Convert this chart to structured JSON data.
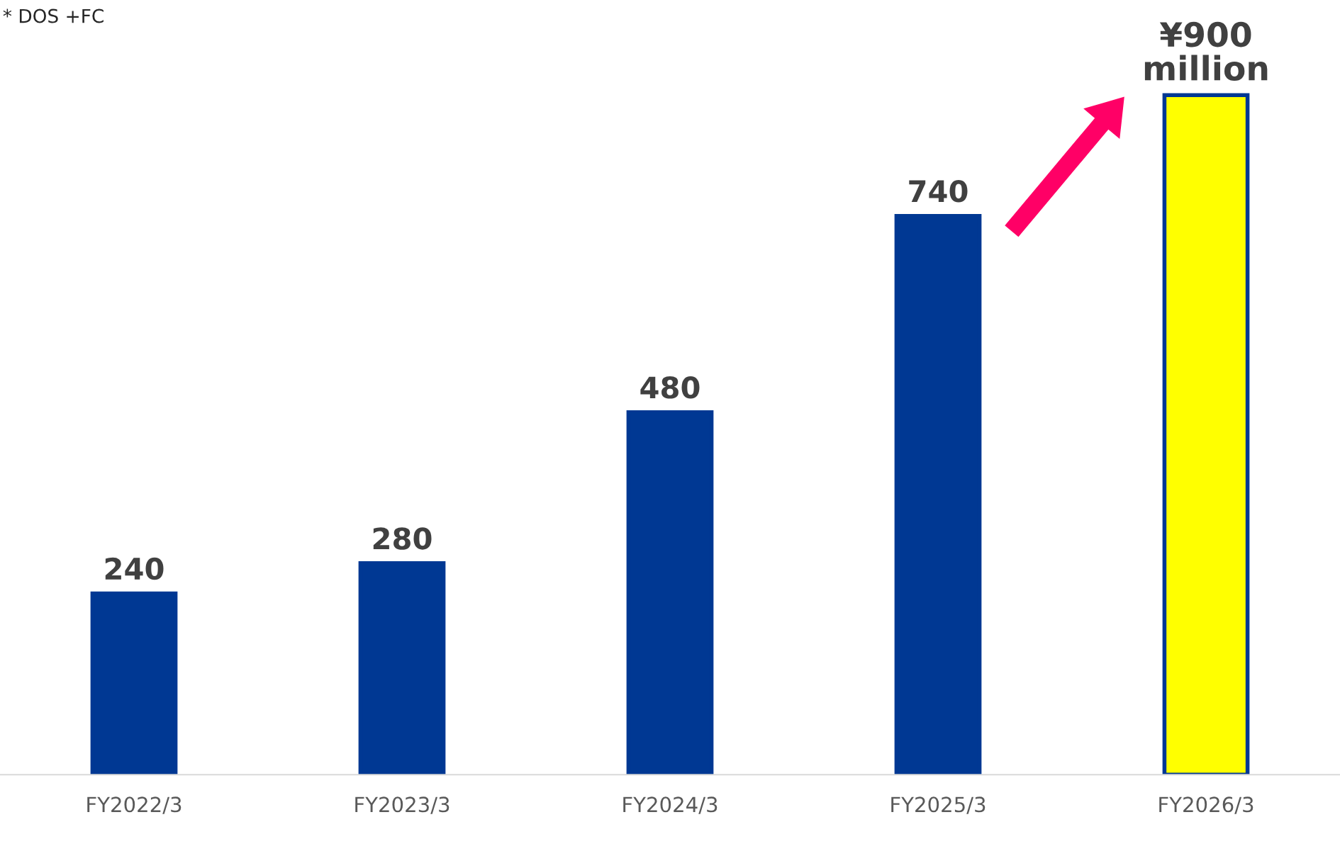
{
  "chart_data": {
    "type": "bar",
    "categories": [
      "FY2022/3",
      "FY2023/3",
      "FY2024/3",
      "FY2025/3",
      "FY2026/3"
    ],
    "values": [
      240,
      280,
      480,
      740,
      900
    ],
    "colors": [
      "#003893",
      "#003893",
      "#003893",
      "#003893",
      "#ffff00"
    ],
    "value_labels": [
      "240",
      "280",
      "480",
      "740",
      "¥900 million"
    ],
    "annotations": [
      "* DOS +FC"
    ],
    "grid": false
  }
}
